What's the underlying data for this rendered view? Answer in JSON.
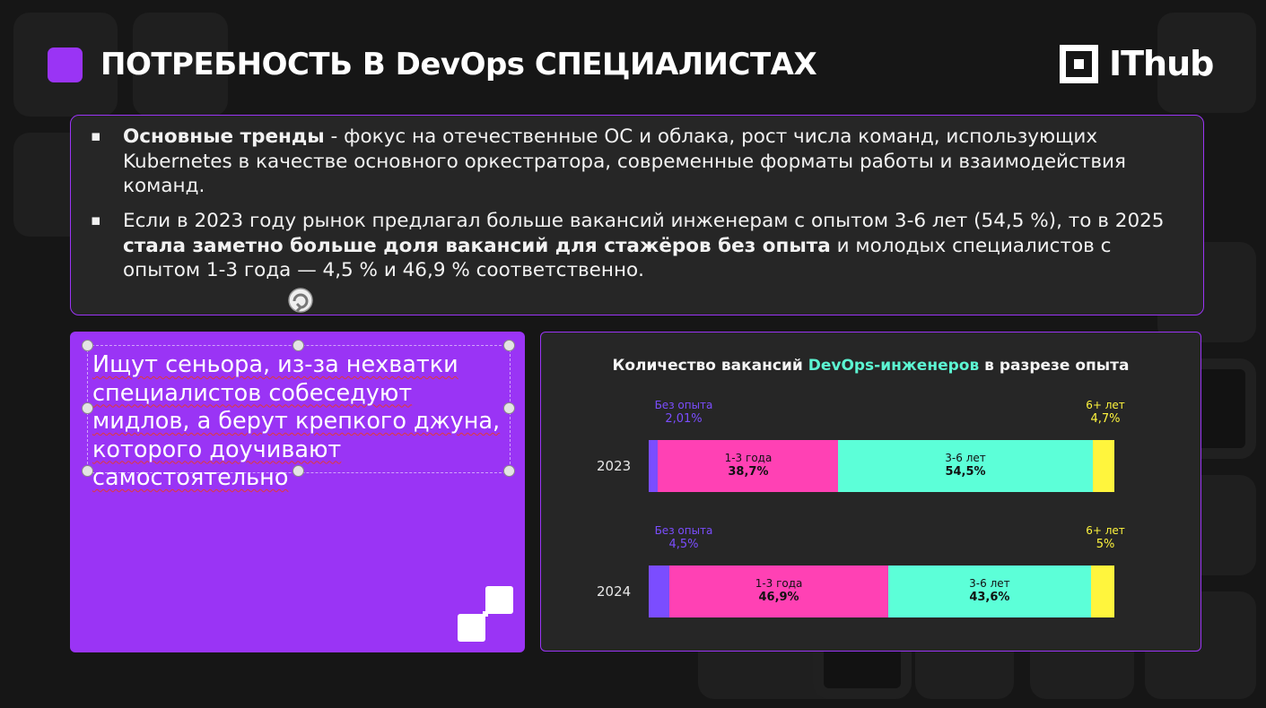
{
  "header": {
    "title": "ПОТРЕБНОСТЬ В DevOps СПЕЦИАЛИСТАХ",
    "logo": "IThub"
  },
  "trends": {
    "bullet1_bold": "Основные тренды",
    "bullet1_text": " - фокус на отечественные ОС и облака, рост числа команд, использующих Kubernetes в качестве основного оркестратора, современные форматы работы и взаимодействия команд.",
    "bullet2_text1": "Если в 2023 году рынок предлагал больше вакансий инженерам с опытом 3-6 лет  (54,5 %), то в 2025 ",
    "bullet2_bold": "стала заметно больше доля вакансий для стажёров без опыта",
    "bullet2_text2": " и молодых специалистов с опытом 1-3 года — 4,5 % и 46,9 % соответственно."
  },
  "quote": {
    "text": "Ищут сеньора, из-за нехватки специалистов собеседуют мидлов, а берут крепкого джуна, которого доучивают самостоятельно"
  },
  "colors": {
    "accent_purple": "#9a34f5",
    "no_experience": "#7b4dff",
    "years_1_3": "#ff41b4",
    "years_3_6": "#5cffd8",
    "years_6_plus": "#fff53d",
    "title_accent": "#5cf5d2"
  },
  "chart_data": {
    "type": "bar",
    "orientation": "horizontal-stacked",
    "title_part1": "Количество вакансий ",
    "title_accent": "DevOps-инженеров",
    "title_part2": " в разрезе опыта",
    "categories": [
      "2023",
      "2024"
    ],
    "series": [
      {
        "name": "Без опыта",
        "values": [
          2.01,
          4.5
        ],
        "labels": [
          "2,01%",
          "4,5%"
        ]
      },
      {
        "name": "1-3 года",
        "values": [
          38.7,
          46.9
        ],
        "labels": [
          "38,7%",
          "46,9%"
        ]
      },
      {
        "name": "3-6 лет",
        "values": [
          54.5,
          43.6
        ],
        "labels": [
          "54,5%",
          "43,6%"
        ]
      },
      {
        "name": "6+ лет",
        "values": [
          4.7,
          5
        ],
        "labels": [
          "4,7%",
          "5%"
        ]
      }
    ]
  }
}
